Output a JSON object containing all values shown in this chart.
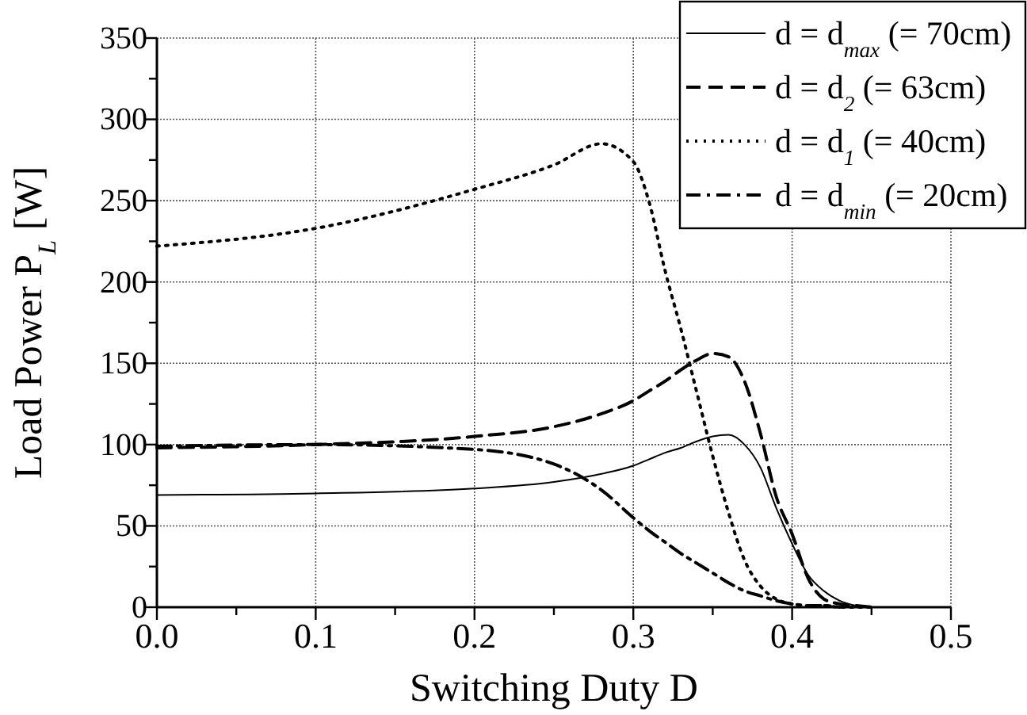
{
  "chart_data": {
    "type": "line",
    "xlabel": "Switching Duty D",
    "ylabel": "Load Power P$_{L}$ [W]",
    "xlim": [
      0,
      0.5
    ],
    "xticks": [
      {
        "value": 0,
        "label": "0.0"
      },
      {
        "value": 0.05,
        "label": null
      },
      0.1,
      {
        "value": 0.15,
        "label": null
      },
      0.2,
      {
        "value": 0.25,
        "label": null
      },
      0.3,
      {
        "value": 0.35,
        "label": null
      },
      0.4,
      {
        "value": 0.45,
        "label": null
      },
      0.5
    ],
    "ylim": [
      0,
      350
    ],
    "yticks": [
      0,
      {
        "value": 25,
        "label": null
      },
      50,
      {
        "value": 75,
        "label": null
      },
      100,
      {
        "value": 125,
        "label": null
      },
      150,
      {
        "value": 175,
        "label": null
      },
      200,
      {
        "value": 225,
        "label": null
      },
      250,
      {
        "value": 275,
        "label": null
      },
      300,
      {
        "value": 325,
        "label": null
      },
      350
    ],
    "grid": true,
    "legend": "top right",
    "marker": "none",
    "x": [
      0,
      0.1,
      0.2,
      0.25,
      0.28,
      0.3,
      0.31,
      0.32,
      0.33,
      0.34,
      0.35,
      0.36,
      0.37,
      0.38,
      0.39,
      0.4,
      0.41,
      0.42,
      0.43,
      0.44,
      0.45
    ],
    "series": [
      {
        "name": "d = d$_{max}$ (= 70cm)",
        "color": "#000000",
        "line_style": "solid",
        "values": [
          69,
          70,
          73,
          77,
          82,
          87,
          91,
          95,
          98,
          102,
          105,
          106,
          100,
          86,
          61,
          39,
          20,
          10,
          4,
          1,
          0
        ]
      },
      {
        "name": "d = d$_{2}$ (= 63cm)",
        "color": "#000000",
        "line_style": "dashed",
        "values": [
          98,
          100,
          105,
          111,
          119,
          127,
          133,
          139,
          146,
          152,
          156,
          154,
          139,
          107,
          68,
          45,
          18,
          5,
          2,
          1,
          0
        ]
      },
      {
        "name": "d = d$_{1}$ (= 40cm)",
        "color": "#000000",
        "line_style": "dotted",
        "values": [
          222,
          233,
          257,
          272,
          285,
          274,
          249,
          207,
          171,
          132,
          93,
          58,
          29,
          13,
          5,
          2,
          1,
          1,
          0,
          0,
          0
        ]
      },
      {
        "name": "d = d$_{min}$ (= 20cm)",
        "color": "#000000",
        "line_style": "dashdot",
        "x": [
          0,
          0.1,
          0.2,
          0.25,
          0.28,
          0.3,
          0.31,
          0.32,
          0.33,
          0.34,
          0.35,
          0.36,
          0.37,
          0.38,
          0.39,
          0.4,
          0.41,
          0.42,
          0.43
        ],
        "values": [
          99,
          100,
          97,
          88,
          72,
          55,
          47,
          40,
          33,
          27,
          21,
          15,
          10,
          7,
          4,
          2,
          1,
          1,
          0
        ]
      }
    ]
  }
}
